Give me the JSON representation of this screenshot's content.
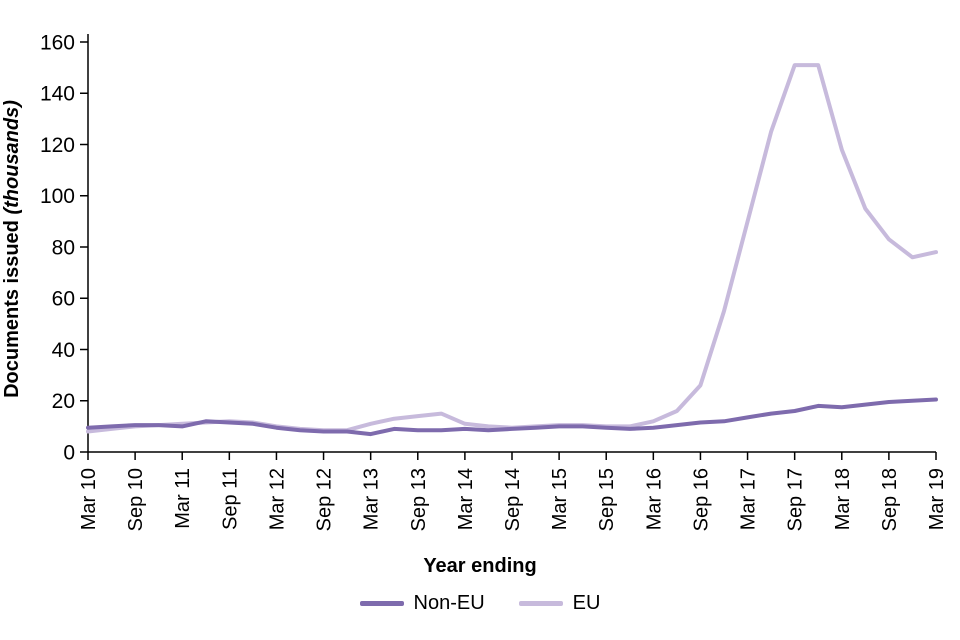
{
  "labels": {
    "y_title_main": "Documents issued",
    "y_title_unit": "(thousands)",
    "x_title": "Year ending"
  },
  "chart_data": {
    "type": "line",
    "title": "",
    "xlabel": "Year ending",
    "ylabel": "Documents issued (thousands)",
    "ylim": [
      0,
      160
    ],
    "ytick_step": 20,
    "grid": false,
    "legend_position": "bottom",
    "categories": [
      "Mar 10",
      "Sep 10",
      "Mar 11",
      "Sep 11",
      "Mar 12",
      "Sep 12",
      "Mar 13",
      "Sep 13",
      "Mar 14",
      "Sep 14",
      "Mar 15",
      "Sep 15",
      "Mar 16",
      "Sep 16",
      "Mar 17",
      "Sep 17",
      "Mar 18",
      "Sep 18",
      "Mar 19"
    ],
    "tick_every": 2,
    "resolution": "quarterly (labels shown every second point)",
    "series": [
      {
        "name": "Non-EU",
        "color": "#7e6bad",
        "values": [
          9.5,
          10,
          10.5,
          10.5,
          10,
          12,
          11.5,
          11,
          9.5,
          8.5,
          8,
          8,
          7,
          9,
          8.5,
          8.5,
          9,
          8.5,
          9,
          9.5,
          10,
          10,
          9.5,
          9,
          9.5,
          10.5,
          11.5,
          12,
          13.5,
          15,
          16,
          18,
          17.5,
          18.5,
          19.5,
          20,
          20.5
        ]
      },
      {
        "name": "EU",
        "color": "#c7badc",
        "values": [
          8,
          9,
          10,
          10.5,
          11,
          11.5,
          12,
          11.5,
          10,
          9,
          8.5,
          8.5,
          11,
          13,
          14,
          15,
          11,
          10,
          9.5,
          10,
          10.5,
          10.5,
          10,
          10,
          12,
          16,
          26,
          55,
          90,
          125,
          151,
          151,
          118,
          95,
          83,
          76,
          78
        ]
      }
    ]
  }
}
